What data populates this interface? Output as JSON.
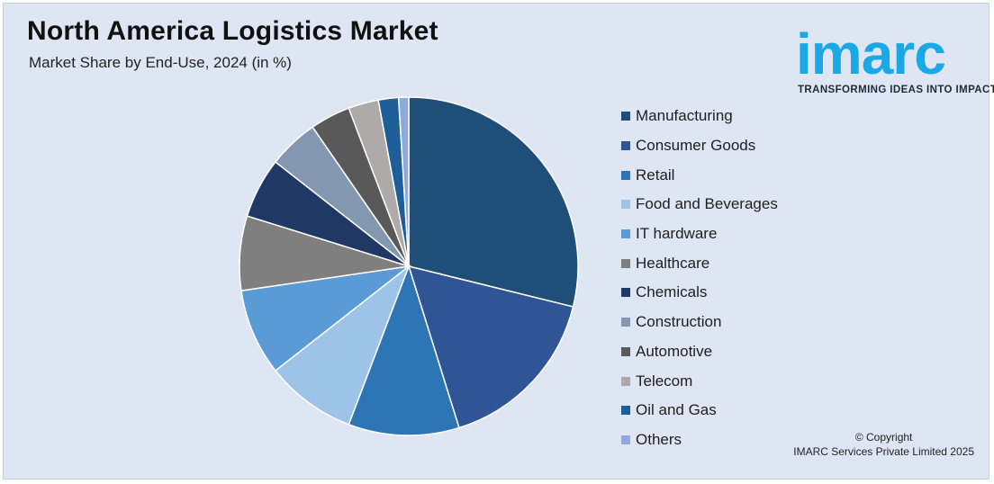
{
  "header": {
    "title": "North America Logistics Market",
    "subtitle": "Market Share by End-Use, 2024 (in %)"
  },
  "logo": {
    "word": "imarc",
    "tagline": "TRANSFORMING IDEAS INTO IMPACT",
    "color": "#1aa9e6"
  },
  "footer": {
    "line1": "© Copyright",
    "line2": "IMARC Services Private Limited 2025"
  },
  "chart_data": {
    "type": "pie",
    "title": "North America Logistics Market",
    "subtitle": "Market Share by End-Use, 2024 (in %)",
    "legend_position": "right",
    "slices": [
      {
        "label": "Manufacturing",
        "value": 30,
        "color": "#1f4e79"
      },
      {
        "label": "Consumer Goods",
        "value": 17,
        "color": "#2f5597"
      },
      {
        "label": "Retail",
        "value": 11,
        "color": "#2e75b6"
      },
      {
        "label": "Food and Beverages",
        "value": 9,
        "color": "#9dc3e6"
      },
      {
        "label": "IT hardware",
        "value": 8.6,
        "color": "#5b9bd5"
      },
      {
        "label": "Healthcare",
        "value": 7.4,
        "color": "#7f7f7f"
      },
      {
        "label": "Chemicals",
        "value": 6,
        "color": "#203864"
      },
      {
        "label": "Construction",
        "value": 5,
        "color": "#8497b0"
      },
      {
        "label": "Automotive",
        "value": 4,
        "color": "#595959"
      },
      {
        "label": "Telecom",
        "value": 3,
        "color": "#aeaaaa"
      },
      {
        "label": "Oil and Gas",
        "value": 2,
        "color": "#1f5f99"
      },
      {
        "label": "Others",
        "value": 1,
        "color": "#8fa9dc"
      }
    ]
  }
}
